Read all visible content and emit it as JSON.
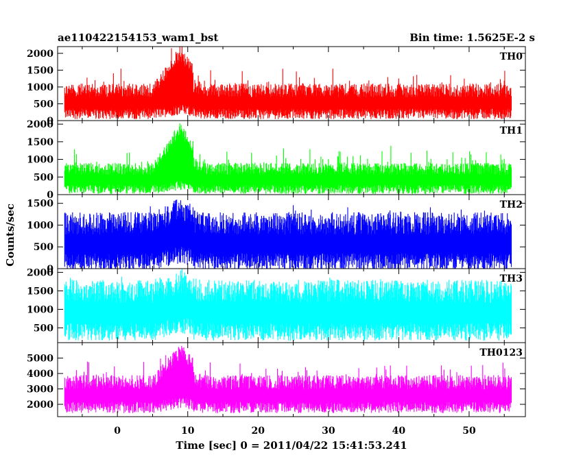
{
  "header": {
    "observation_id": "ae110422154153_wam1_bst",
    "bin_time": "Bin time: 1.5625E-2 s"
  },
  "axes": {
    "ylabel": "Counts/sec",
    "xlabel": "Time [sec] 0 = 2011/04/22 15:41:53.241",
    "x_ticks": [
      "0",
      "10",
      "20",
      "30",
      "40",
      "50"
    ]
  },
  "chart_data": [
    {
      "type": "line",
      "series_name": "TH0",
      "color": "#ff0000",
      "xlim": [
        -8.5,
        58
      ],
      "ylim": [
        0,
        2200
      ],
      "y_ticks": [
        "0",
        "500",
        "1000",
        "1500",
        "2000"
      ],
      "x_range": [
        -7.5,
        56
      ],
      "baseline_low": 200,
      "baseline_high": 1100,
      "burst_center": 9,
      "burst_peak": 2150,
      "annotations": [
        "TH0"
      ]
    },
    {
      "type": "line",
      "series_name": "TH1",
      "color": "#00ff00",
      "xlim": [
        -8.5,
        58
      ],
      "ylim": [
        0,
        2100
      ],
      "y_ticks": [
        "0",
        "500",
        "1000",
        "1500",
        "2000"
      ],
      "x_range": [
        -7.5,
        56
      ],
      "baseline_low": 150,
      "baseline_high": 900,
      "burst_center": 9,
      "burst_peak": 2000,
      "annotations": [
        "TH1"
      ]
    },
    {
      "type": "line",
      "series_name": "TH2",
      "color": "#0000ff",
      "xlim": [
        -8.5,
        58
      ],
      "ylim": [
        0,
        1700
      ],
      "y_ticks": [
        "0",
        "500",
        "1000",
        "1500"
      ],
      "x_range": [
        -7.5,
        56
      ],
      "baseline_low": 150,
      "baseline_high": 1300,
      "burst_center": 9,
      "burst_peak": 1650,
      "annotations": [
        "TH2"
      ]
    },
    {
      "type": "line",
      "series_name": "TH3",
      "color": "#00ffff",
      "xlim": [
        -8.5,
        58
      ],
      "ylim": [
        100,
        2100
      ],
      "y_ticks": [
        "500",
        "1000",
        "1500",
        "2000"
      ],
      "x_range": [
        -7.5,
        56
      ],
      "baseline_low": 400,
      "baseline_high": 1800,
      "burst_center": 9,
      "burst_peak": 2050,
      "annotations": [
        "TH3"
      ]
    },
    {
      "type": "line",
      "series_name": "TH0123",
      "color": "#ff00ff",
      "xlim": [
        -8.5,
        58
      ],
      "ylim": [
        1200,
        6000
      ],
      "y_ticks": [
        "2000",
        "3000",
        "4000",
        "5000"
      ],
      "x_range": [
        -7.5,
        56
      ],
      "baseline_low": 1800,
      "baseline_high": 3900,
      "burst_center": 9,
      "burst_peak": 5900,
      "annotations": [
        "TH0123"
      ]
    }
  ]
}
